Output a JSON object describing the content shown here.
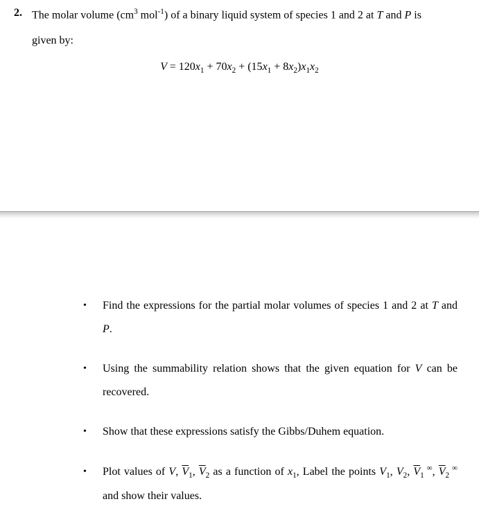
{
  "problem": {
    "number": "2.",
    "prompt_l1": "The molar volume (cm³ mol⁻¹) of a binary liquid system of species 1 and 2 at T and P is",
    "prompt_l2": "given by:"
  },
  "equation": {
    "lhs": "V",
    "eq": " = ",
    "rhs_plain": "120x₁ + 70x₂ + (15x₁ + 8x₂)x₁x₂"
  },
  "bullets": [
    {
      "text": "Find the expressions for the partial molar volumes of species 1 and 2 at T and P."
    },
    {
      "text": "Using the summability relation shows that the given equation for V can be recovered."
    },
    {
      "text": "Show that these expressions satisfy the Gibbs/Duhem equation."
    },
    {
      "text": "Plot values of V, V̄₁, V̄₂ as a function of x₁, Label the points V₁, V₂, V̄₁∞, V̄₂∞ and show their values."
    }
  ],
  "style": {
    "font_family": "Times New Roman",
    "body_fontsize_pt": 12,
    "text_color": "#000000",
    "background_color": "#ffffff",
    "divider_gradient_top": "#c8c8c8",
    "divider_gradient_bottom": "#ffffff"
  }
}
